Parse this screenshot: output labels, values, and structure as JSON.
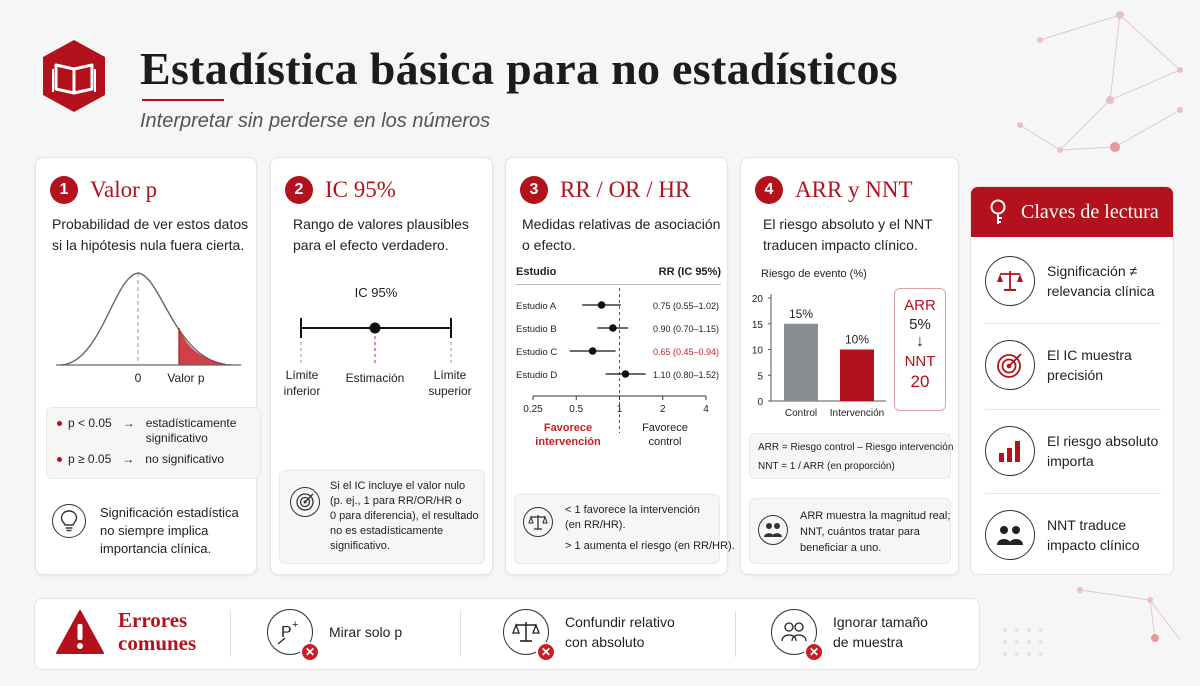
{
  "header": {
    "title": "Estadística básica para no estadísticos",
    "subtitle": "Interpretar sin perderse en los números"
  },
  "cards": [
    {
      "number": "1",
      "title": "Valor p",
      "desc_l1": "Probabilidad de ver estos datos",
      "desc_l2": "si la hipótesis nula fuera cierta.",
      "axis_zero": "0",
      "axis_p": "Valor p",
      "bullet1_left": "p < 0.05",
      "bullet1_right_l1": "estadísticamente",
      "bullet1_right_l2": "significativo",
      "bullet2_left": "p ≥ 0.05",
      "bullet2_right": "no significativo",
      "arrow": "→",
      "note_l1": "Significación estadística",
      "note_l2": "no siempre implica",
      "note_l3": "importancia clínica."
    },
    {
      "number": "2",
      "title": "IC 95%",
      "desc_l1": "Rango de valores plausibles",
      "desc_l2": "para el efecto verdadero.",
      "ci_label": "IC 95%",
      "lower_l1": "Límite",
      "lower_l2": "inferior",
      "estimate": "Estimación",
      "upper_l1": "Límite",
      "upper_l2": "superior",
      "note_l1": "Si el IC incluye el valor nulo",
      "note_l2": "(p. ej., 1 para RR/OR/HR o",
      "note_l3": "0 para diferencia), el resultado",
      "note_l4": "no es estadísticamente",
      "note_l5": "significativo."
    },
    {
      "number": "3",
      "title": "RR / OR / HR",
      "desc_l1": "Medidas relativas de asociación",
      "desc_l2": "o efecto.",
      "col_study": "Estudio",
      "col_rr": "RR (IC 95%)",
      "studies": [
        {
          "name": "Estudio A",
          "ci": "0.75 (0.55–1.02)",
          "est": 0.75,
          "lo": 0.55,
          "hi": 1.02
        },
        {
          "name": "Estudio B",
          "ci": "0.90 (0.70–1.15)",
          "est": 0.9,
          "lo": 0.7,
          "hi": 1.15
        },
        {
          "name": "Estudio C",
          "ci": "0.65 (0.45–0.94)",
          "est": 0.65,
          "lo": 0.45,
          "hi": 0.94
        },
        {
          "name": "Estudio D",
          "ci": "1.10 (0.80–1.52)",
          "est": 1.1,
          "lo": 0.8,
          "hi": 1.52
        }
      ],
      "ticks": [
        "0.25",
        "0.5",
        "1",
        "2",
        "4"
      ],
      "fav_int_l1": "Favorece",
      "fav_int_l2": "intervención",
      "fav_ctrl_l1": "Favorece",
      "fav_ctrl_l2": "control",
      "note_l1": "< 1 favorece la intervención",
      "note_l2": "(en RR/HR).",
      "note_l3": "> 1 aumenta el riesgo (en RR/HR)."
    },
    {
      "number": "4",
      "title": "ARR y NNT",
      "desc_l1": "El riesgo absoluto y el NNT",
      "desc_l2": "traducen impacto clínico.",
      "chart_label": "Riesgo de evento (%)",
      "y_ticks": [
        "20",
        "15",
        "10",
        "5",
        "0"
      ],
      "bars": [
        {
          "label": "Control",
          "value": 15,
          "text": "15%",
          "color": "#8a8d91"
        },
        {
          "label": "Intervención",
          "value": 10,
          "text": "10%",
          "color": "#b3111b"
        }
      ],
      "arr_title": "ARR",
      "arr_value": "5%",
      "arrow_down": "↓",
      "nnt_title": "NNT",
      "nnt_value": "20",
      "formula1": "ARR = Riesgo control – Riesgo intervención",
      "formula2": "NNT = 1 / ARR (en proporción)",
      "note_l1": "ARR muestra la magnitud real;",
      "note_l2": "NNT, cuántos tratar para",
      "note_l3": "beneficiar a uno."
    }
  ],
  "sidebar": {
    "title": "Claves de lectura",
    "items": [
      {
        "l1": "Significación ≠",
        "l2": "relevancia clínica"
      },
      {
        "l1": "El IC muestra",
        "l2": "precisión"
      },
      {
        "l1": "El riesgo absoluto",
        "l2": "importa"
      },
      {
        "l1": "NNT traduce",
        "l2": "impacto clínico"
      }
    ]
  },
  "errors": {
    "title_l1": "Errores",
    "title_l2": "comunes",
    "items": [
      {
        "l1": "Mirar solo p",
        "l2": ""
      },
      {
        "l1": "Confundir relativo",
        "l2": "con absoluto"
      },
      {
        "l1": "Ignorar tamaño",
        "l2": "de muestra"
      }
    ]
  },
  "colors": {
    "accent": "#b3111b",
    "grey_bar": "#8a8d91"
  }
}
